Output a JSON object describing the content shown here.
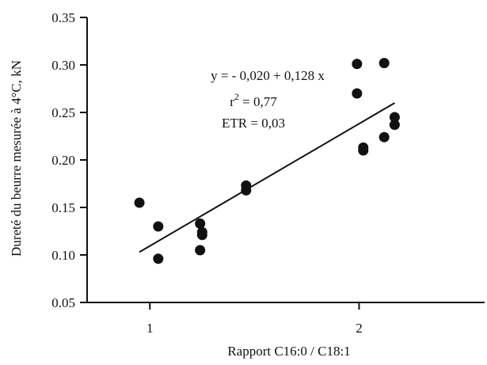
{
  "chart_data": {
    "type": "scatter",
    "xlabel": "Rapport C16:0 / C18:1",
    "ylabel": "Dureté du beurre mesurée à 4°C, kN",
    "xlim": [
      0.7,
      2.6
    ],
    "ylim": [
      0.05,
      0.35
    ],
    "x_ticks": [
      1,
      2
    ],
    "x_tick_labels": [
      "1",
      "2"
    ],
    "y_ticks": [
      0.05,
      0.1,
      0.15,
      0.2,
      0.25,
      0.3,
      0.35
    ],
    "y_tick_labels": [
      "0.05",
      "0.10",
      "0.15",
      "0.20",
      "0.25",
      "0.30",
      "0.35"
    ],
    "grid": false,
    "legend": "none",
    "annotations": {
      "equation": "y = - 0,020 + 0,128 x",
      "r2_prefix": "r",
      "r2_sup": "2",
      "r2_value": " = 0,77",
      "etr": "ETR = 0,03"
    },
    "regression_line": {
      "x": [
        0.95,
        2.17
      ],
      "y": [
        0.103,
        0.26
      ]
    },
    "series": [
      {
        "points": [
          {
            "x": 0.95,
            "y": 0.155
          },
          {
            "x": 1.04,
            "y": 0.13
          },
          {
            "x": 1.04,
            "y": 0.096
          },
          {
            "x": 1.24,
            "y": 0.133
          },
          {
            "x": 1.25,
            "y": 0.124
          },
          {
            "x": 1.25,
            "y": 0.121
          },
          {
            "x": 1.24,
            "y": 0.105
          },
          {
            "x": 1.46,
            "y": 0.173
          },
          {
            "x": 1.46,
            "y": 0.168
          },
          {
            "x": 1.99,
            "y": 0.301
          },
          {
            "x": 1.99,
            "y": 0.27
          },
          {
            "x": 2.02,
            "y": 0.213
          },
          {
            "x": 2.02,
            "y": 0.21
          },
          {
            "x": 2.12,
            "y": 0.302
          },
          {
            "x": 2.12,
            "y": 0.224
          },
          {
            "x": 2.17,
            "y": 0.245
          },
          {
            "x": 2.17,
            "y": 0.237
          }
        ]
      }
    ]
  }
}
